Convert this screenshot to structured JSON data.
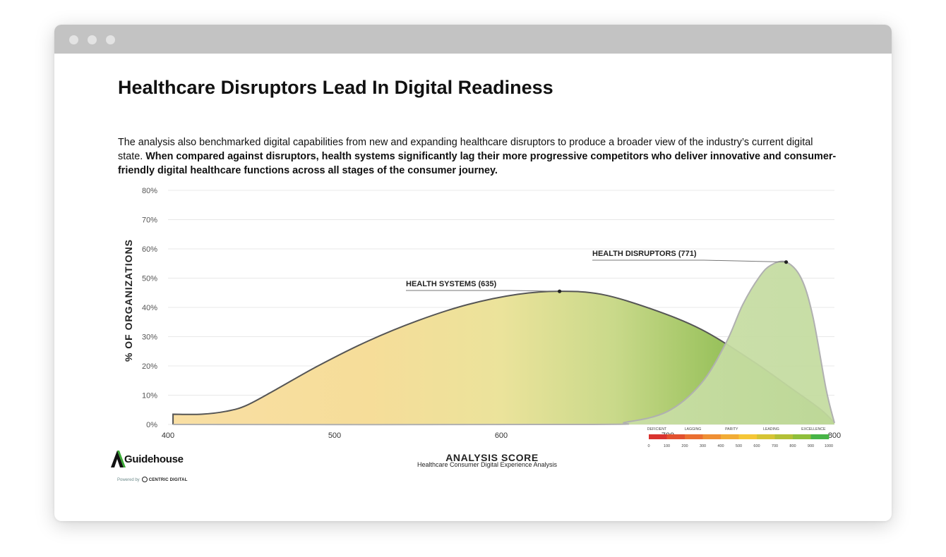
{
  "page": {
    "title": "Healthcare Disruptors Lead In Digital Readiness",
    "description_plain": "The analysis also benchmarked digital capabilities from new and expanding healthcare disruptors to produce a broader view of the industry’s current digital state.",
    "description_bold": "When compared against disruptors, health systems significantly lag their more progressive competitors who deliver innovative and consumer-friendly digital healthcare functions across all stages of the consumer journey.",
    "footer": "Healthcare Consumer Digital Experience Analysis"
  },
  "brand": {
    "name": "Guidehouse",
    "powered_by": "Powered by",
    "partner": "CENTRIC DIGITAL"
  },
  "chart_data": {
    "type": "area",
    "xlabel": "ANALYSIS SCORE",
    "ylabel": "% OF ORGANIZATIONS",
    "xlim": [
      400,
      800
    ],
    "ylim": [
      0,
      80
    ],
    "x_ticks": [
      400,
      500,
      600,
      700,
      800
    ],
    "y_ticks": [
      "0%",
      "10%",
      "20%",
      "30%",
      "40%",
      "50%",
      "60%",
      "70%",
      "80%"
    ],
    "grid": true,
    "series": [
      {
        "name": "HEALTH SYSTEMS (635)",
        "x": [
          403,
          403,
          420,
          435,
          447,
          465,
          490,
          520,
          550,
          580,
          610,
          635,
          660,
          690,
          720,
          750,
          775,
          792,
          800
        ],
        "y": [
          0,
          3.5,
          3.5,
          4.5,
          6.5,
          12,
          20,
          28.5,
          35.5,
          41,
          44.5,
          45.5,
          44.5,
          39.5,
          32.5,
          22,
          12,
          5,
          0.5
        ],
        "peak": [
          635,
          45.5
        ],
        "stroke": "#555555"
      },
      {
        "name": "HEALTH DISRUPTORS (771)",
        "x": [
          403,
          650,
          675,
          700,
          720,
          735,
          745,
          755,
          762,
          771,
          780,
          787,
          795,
          800
        ],
        "y": [
          0,
          0,
          0.8,
          4.5,
          14,
          28,
          41,
          50.5,
          54.5,
          55.5,
          50,
          37,
          12,
          0.5
        ],
        "peak": [
          771,
          55.5
        ],
        "stroke": "#b0b0b0"
      }
    ],
    "scale_legend": {
      "categories": [
        "DEFICIENT",
        "LAGGING",
        "PARITY",
        "LEADING",
        "EXCELLENCE"
      ],
      "ticks": [
        "0",
        "100",
        "200",
        "300",
        "400",
        "500",
        "600",
        "700",
        "800",
        "900",
        "1000"
      ],
      "colors": [
        "#d9332f",
        "#e2512f",
        "#ea6f31",
        "#ef8f34",
        "#f2ac35",
        "#f5c636",
        "#d6c434",
        "#b3c036",
        "#8fbf3b",
        "#47b447"
      ]
    }
  }
}
